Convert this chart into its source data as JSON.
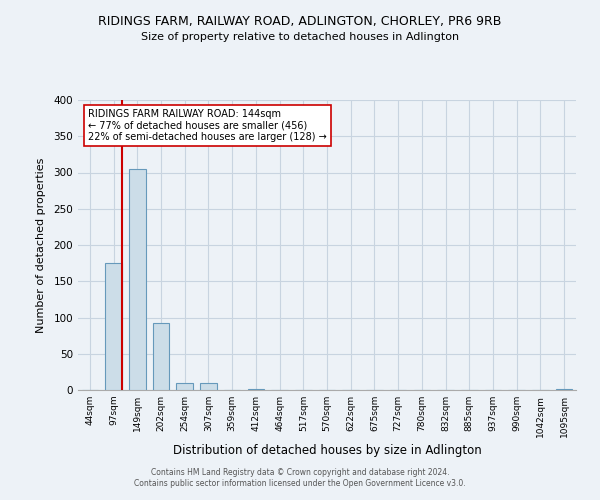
{
  "title": "RIDINGS FARM, RAILWAY ROAD, ADLINGTON, CHORLEY, PR6 9RB",
  "subtitle": "Size of property relative to detached houses in Adlington",
  "xlabel": "Distribution of detached houses by size in Adlington",
  "ylabel": "Number of detached properties",
  "bin_labels": [
    "44sqm",
    "97sqm",
    "149sqm",
    "202sqm",
    "254sqm",
    "307sqm",
    "359sqm",
    "412sqm",
    "464sqm",
    "517sqm",
    "570sqm",
    "622sqm",
    "675sqm",
    "727sqm",
    "780sqm",
    "832sqm",
    "885sqm",
    "937sqm",
    "990sqm",
    "1042sqm",
    "1095sqm"
  ],
  "bar_heights": [
    0,
    175,
    305,
    93,
    9,
    10,
    0,
    2,
    0,
    0,
    0,
    0,
    0,
    0,
    0,
    0,
    0,
    0,
    0,
    0,
    2
  ],
  "bar_color": "#ccdde8",
  "bar_edge_color": "#6699bb",
  "ylim": [
    0,
    400
  ],
  "yticks": [
    0,
    50,
    100,
    150,
    200,
    250,
    300,
    350,
    400
  ],
  "property_line_color": "#cc0000",
  "annotation_title": "RIDINGS FARM RAILWAY ROAD: 144sqm",
  "annotation_line1": "← 77% of detached houses are smaller (456)",
  "annotation_line2": "22% of semi-detached houses are larger (128) →",
  "annotation_box_color": "#ffffff",
  "annotation_box_edge": "#cc0000",
  "footer1": "Contains HM Land Registry data © Crown copyright and database right 2024.",
  "footer2": "Contains public sector information licensed under the Open Government Licence v3.0.",
  "background_color": "#edf2f7",
  "grid_color": "#c8d4e0"
}
